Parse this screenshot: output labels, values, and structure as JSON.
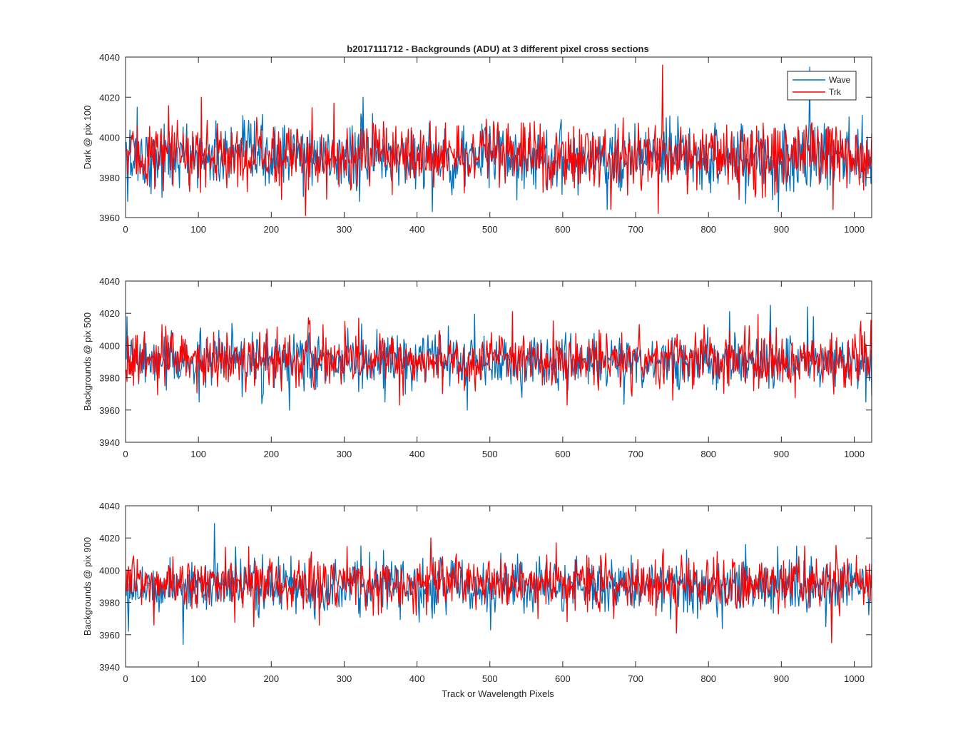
{
  "figure": {
    "title": "b2017111712 - Backgrounds (ADU) at 3 different pixel cross sections",
    "xlabel": "Track or Wavelength Pixels"
  },
  "chart_data": [
    {
      "type": "line",
      "title": "b2017111712 - Backgrounds (ADU) at 3 different pixel cross sections",
      "xlabel": "",
      "ylabel": "Dark @ pix 100",
      "xlim": [
        0,
        1024
      ],
      "ylim": [
        3960,
        4040
      ],
      "xticks": [
        0,
        100,
        200,
        300,
        400,
        500,
        600,
        700,
        800,
        900,
        1000
      ],
      "yticks": [
        3960,
        3980,
        4000,
        4020,
        4040
      ],
      "grid": false,
      "legend": "top-right",
      "series": [
        {
          "name": "Wave",
          "color": "#0072BD",
          "points": 1024,
          "mean": 3990,
          "spread": 8,
          "spikes": [
            [
              2,
              3968
            ],
            [
              15,
              4015
            ],
            [
              325,
              4020
            ],
            [
              420,
              3963
            ],
            [
              660,
              3964
            ],
            [
              850,
              3967
            ],
            [
              895,
              3963
            ],
            [
              938,
              4035
            ],
            [
              1010,
              4011
            ]
          ]
        },
        {
          "name": "Trk",
          "color": "#FF0000",
          "points": 1024,
          "mean": 3991,
          "spread": 8,
          "spikes": [
            [
              103,
              4020
            ],
            [
              246,
              3961
            ],
            [
              285,
              4017
            ],
            [
              665,
              3964
            ],
            [
              730,
              3962
            ],
            [
              736,
              4036
            ],
            [
              970,
              3964
            ]
          ]
        }
      ]
    },
    {
      "type": "line",
      "xlabel": "",
      "ylabel": "Backgrounds @ pix 500",
      "xlim": [
        0,
        1024
      ],
      "ylim": [
        3940,
        4040
      ],
      "xticks": [
        0,
        100,
        200,
        300,
        400,
        500,
        600,
        700,
        800,
        900,
        1000
      ],
      "yticks": [
        3940,
        3960,
        3980,
        4000,
        4020,
        4040
      ],
      "grid": false,
      "series": [
        {
          "name": "Wave",
          "color": "#0072BD",
          "points": 1024,
          "mean": 3990,
          "spread": 8,
          "spikes": [
            [
              1,
              4018
            ],
            [
              100,
              3965
            ],
            [
              224,
              3960
            ],
            [
              355,
              3965
            ],
            [
              468,
              3960
            ],
            [
              828,
              4021
            ],
            [
              884,
              4025
            ],
            [
              935,
              4024
            ],
            [
              1015,
              3965
            ],
            [
              1023,
              3969
            ]
          ]
        },
        {
          "name": "Trk",
          "color": "#FF0000",
          "points": 1024,
          "mean": 3991,
          "spread": 8,
          "spikes": [
            [
              270,
              4013
            ],
            [
              300,
              4015
            ],
            [
              375,
              3963
            ],
            [
              530,
              4021
            ],
            [
              605,
              3963
            ],
            [
              750,
              3966
            ],
            [
              1000,
              4007
            ]
          ]
        }
      ]
    },
    {
      "type": "line",
      "xlabel": "Track or Wavelength Pixels",
      "ylabel": "Backgrounds @ pix 900",
      "xlim": [
        0,
        1024
      ],
      "ylim": [
        3940,
        4040
      ],
      "xticks": [
        0,
        100,
        200,
        300,
        400,
        500,
        600,
        700,
        800,
        900,
        1000
      ],
      "yticks": [
        3940,
        3960,
        3980,
        4000,
        4020,
        4040
      ],
      "grid": false,
      "series": [
        {
          "name": "Wave",
          "color": "#0072BD",
          "points": 1024,
          "mean": 3990,
          "spread": 8,
          "spikes": [
            [
              78,
              3954
            ],
            [
              121,
              4029
            ],
            [
              500,
              3963
            ],
            [
              850,
              4016
            ],
            [
              920,
              4015
            ],
            [
              960,
              3965
            ]
          ]
        },
        {
          "name": "Trk",
          "color": "#FF0000",
          "points": 1024,
          "mean": 3992,
          "spread": 8,
          "spikes": [
            [
              38,
              3966
            ],
            [
              175,
              3965
            ],
            [
              418,
              4020
            ],
            [
              590,
              4017
            ],
            [
              755,
              3961
            ],
            [
              968,
              3955
            ]
          ]
        }
      ]
    }
  ]
}
